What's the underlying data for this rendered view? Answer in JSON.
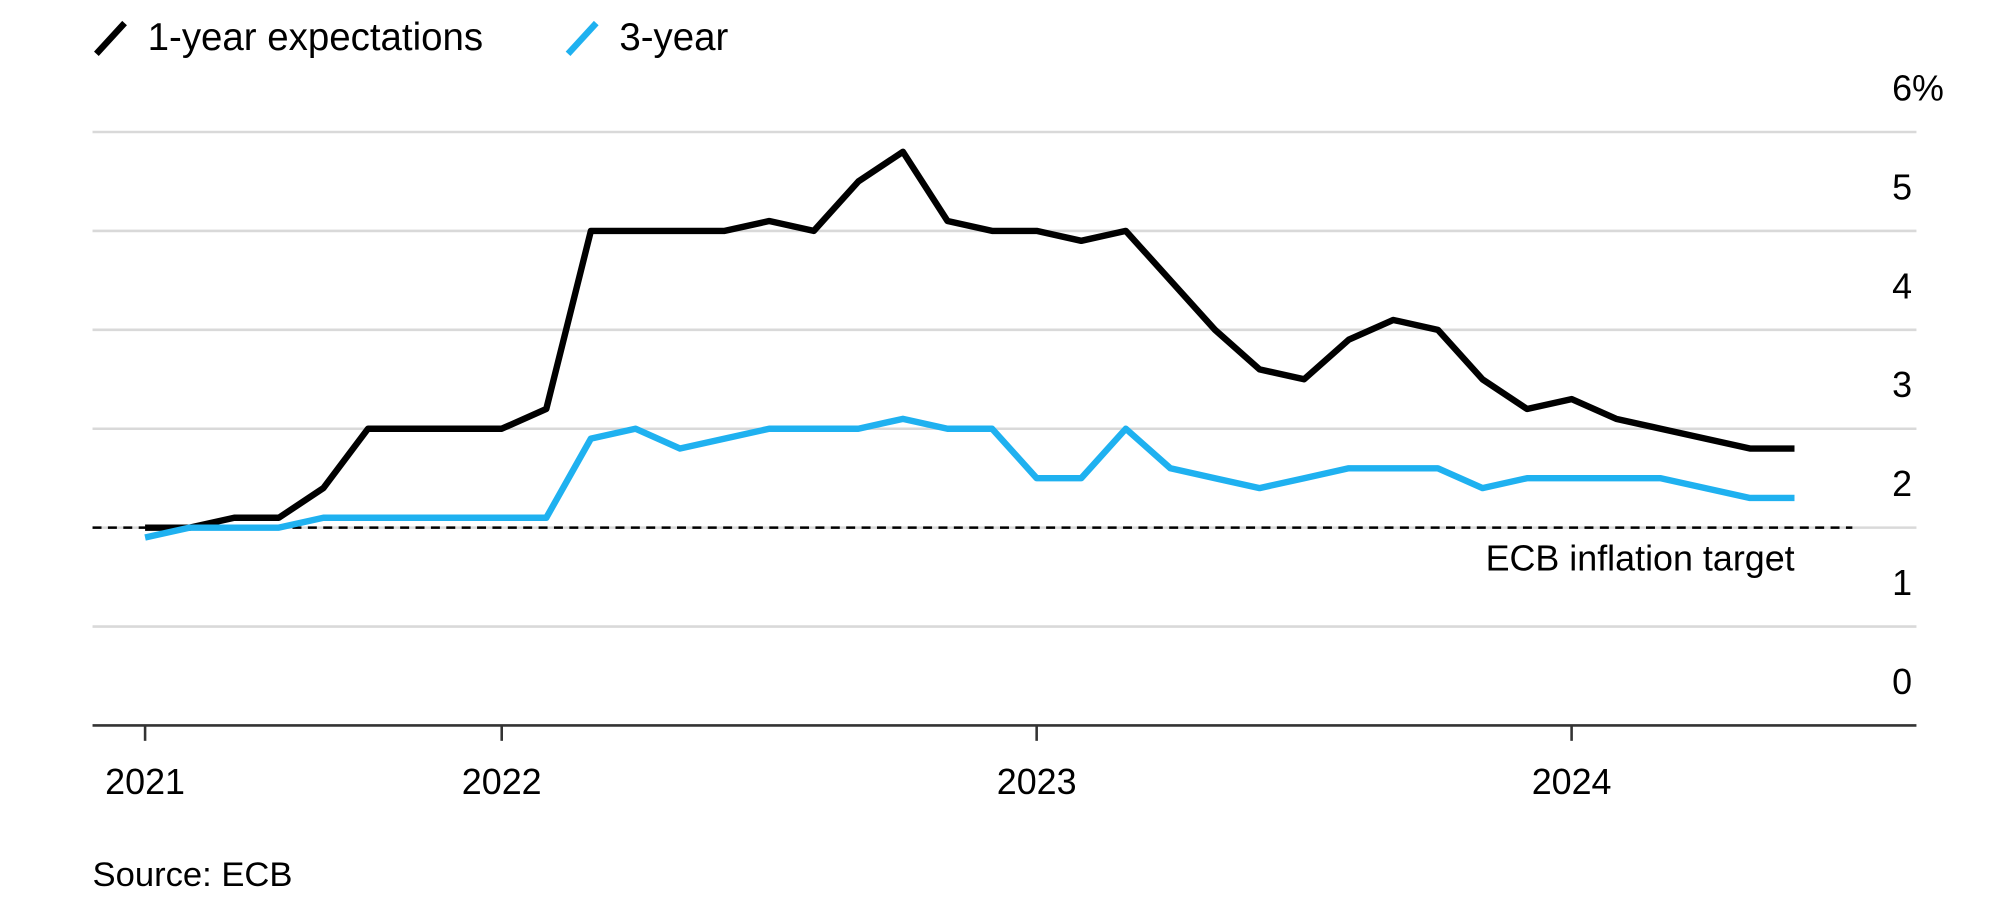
{
  "chart_data": {
    "type": "line",
    "categories": [
      "2021",
      null,
      null,
      null,
      null,
      null,
      null,
      null,
      "2022",
      null,
      null,
      null,
      null,
      null,
      null,
      null,
      null,
      null,
      null,
      null,
      "2023",
      null,
      null,
      null,
      null,
      null,
      null,
      null,
      null,
      null,
      null,
      null,
      "2024",
      null,
      null,
      null,
      null,
      null
    ],
    "series": [
      {
        "name": "1-year expectations",
        "color": "#000000",
        "values": [
          2.0,
          2.0,
          2.1,
          2.1,
          2.4,
          3.0,
          3.0,
          3.0,
          3.0,
          3.2,
          5.0,
          5.0,
          5.0,
          5.0,
          5.1,
          5.0,
          5.5,
          5.8,
          5.1,
          5.0,
          5.0,
          4.9,
          5.0,
          4.5,
          4.0,
          3.6,
          3.5,
          3.9,
          4.1,
          4.0,
          3.5,
          3.2,
          3.3,
          3.1,
          3.0,
          2.9,
          2.8,
          2.8
        ]
      },
      {
        "name": "3-year",
        "color": "#1fb1f0",
        "values": [
          1.9,
          2.0,
          2.0,
          2.0,
          2.1,
          2.1,
          2.1,
          2.1,
          2.1,
          2.1,
          2.9,
          3.0,
          2.8,
          2.9,
          3.0,
          3.0,
          3.0,
          3.1,
          3.0,
          3.0,
          2.5,
          2.5,
          3.0,
          2.6,
          2.5,
          2.4,
          2.5,
          2.6,
          2.6,
          2.6,
          2.4,
          2.5,
          2.5,
          2.5,
          2.5,
          2.4,
          2.3,
          2.3
        ]
      }
    ],
    "ylim": [
      0,
      6
    ],
    "yticks": [
      0,
      1,
      2,
      3,
      4,
      5,
      {
        "value": 6,
        "label": "6%"
      }
    ],
    "grid": true,
    "reference_line": {
      "value": 2,
      "label": "ECB inflation target"
    },
    "source": "Source: ECB"
  }
}
